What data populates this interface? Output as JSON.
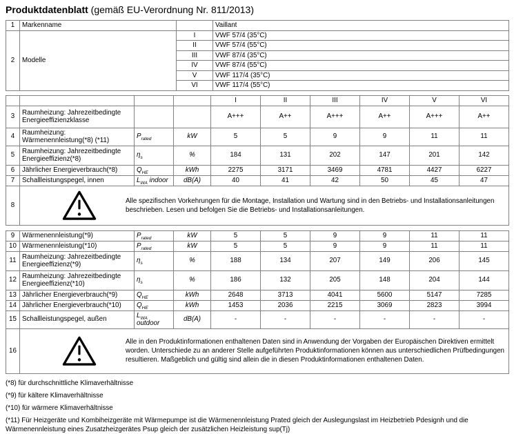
{
  "title": {
    "main": "Produktdatenblatt",
    "sub": " (gemäß EU-Verordnung Nr. 811/2013)"
  },
  "info_table": {
    "brand": {
      "num": "1",
      "label": "Markenname",
      "roman": "",
      "value": "Vaillant"
    },
    "models": {
      "num": "2",
      "label": "Modelle",
      "items": [
        {
          "roman": "I",
          "value": "VWF 57/4 (35°C)"
        },
        {
          "roman": "II",
          "value": "VWF 57/4 (55°C)"
        },
        {
          "roman": "III",
          "value": "VWF 87/4 (35°C)"
        },
        {
          "roman": "IV",
          "value": "VWF 87/4 (55°C)"
        },
        {
          "roman": "V",
          "value": "VWF 117/4 (35°C)"
        },
        {
          "roman": "VI",
          "value": "VWF 117/4 (55°C)"
        }
      ]
    }
  },
  "column_headers": [
    "I",
    "II",
    "III",
    "IV",
    "V",
    "VI"
  ],
  "upper_rows": [
    {
      "num": "3",
      "label": "Raumheizung: Jahrezeitbedingte Energieeffizienzklasse",
      "symbol": {
        "base": "",
        "sub": "",
        "suffix": ""
      },
      "unit": "",
      "values": [
        "A+++",
        "A++",
        "A+++",
        "A++",
        "A+++",
        "A++"
      ]
    },
    {
      "num": "4",
      "label": "Raumheizung: Wärmenennleistung(*8) (*11)",
      "symbol": {
        "base": "P",
        "sub": "rated",
        "suffix": ""
      },
      "unit": "kW",
      "values": [
        "5",
        "5",
        "9",
        "9",
        "11",
        "11"
      ]
    },
    {
      "num": "5",
      "label": "Raumheizung: Jahrezeitbedingte Energieeffizienz(*8)",
      "symbol": {
        "base": "η",
        "sub": "s",
        "suffix": ""
      },
      "unit": "%",
      "values": [
        "184",
        "131",
        "202",
        "147",
        "201",
        "142"
      ]
    },
    {
      "num": "6",
      "label": "Jährlicher Energieverbrauch(*8)",
      "symbol": {
        "base": "Q",
        "sub": "HE",
        "suffix": ""
      },
      "unit": "kWh",
      "values": [
        "2275",
        "3171",
        "3469",
        "4781",
        "4427",
        "6227"
      ]
    },
    {
      "num": "7",
      "label": "Schallleistungspegel, innen",
      "symbol": {
        "base": "L",
        "sub": "WA",
        "suffix": " indoor"
      },
      "unit": "dB(A)",
      "values": [
        "40",
        "41",
        "42",
        "50",
        "45",
        "47"
      ]
    }
  ],
  "warning_8": {
    "num": "8",
    "text": "Alle spezifischen Vorkehrungen für die Montage, Installation und Wartung sind in den Betriebs- und Installationsanleitungen beschrieben. Lesen und befolgen Sie die Betriebs- und Installationsanleitungen."
  },
  "lower_rows": [
    {
      "num": "9",
      "label": "Wärmenennleistung(*9)",
      "symbol": {
        "base": "P",
        "sub": "rated",
        "suffix": ""
      },
      "unit": "kW",
      "values": [
        "5",
        "5",
        "9",
        "9",
        "11",
        "11"
      ]
    },
    {
      "num": "10",
      "label": "Wärmenennleistung(*10)",
      "symbol": {
        "base": "P",
        "sub": "rated",
        "suffix": ""
      },
      "unit": "kW",
      "values": [
        "5",
        "5",
        "9",
        "9",
        "11",
        "11"
      ]
    },
    {
      "num": "11",
      "label": "Raumheizung: Jahrezeitbedingte Energieeffizienz(*9)",
      "symbol": {
        "base": "η",
        "sub": "s",
        "suffix": ""
      },
      "unit": "%",
      "values": [
        "188",
        "134",
        "207",
        "149",
        "206",
        "145"
      ]
    },
    {
      "num": "12",
      "label": "Raumheizung: Jahrezeitbedingte Energieeffizienz(*10)",
      "symbol": {
        "base": "η",
        "sub": "s",
        "suffix": ""
      },
      "unit": "%",
      "values": [
        "186",
        "132",
        "205",
        "148",
        "204",
        "144"
      ]
    },
    {
      "num": "13",
      "label": "Jährlicher Energieverbrauch(*9)",
      "symbol": {
        "base": "Q",
        "sub": "HE",
        "suffix": ""
      },
      "unit": "kWh",
      "values": [
        "2648",
        "3713",
        "4041",
        "5600",
        "5147",
        "7285"
      ]
    },
    {
      "num": "14",
      "label": "Jährlicher Energieverbrauch(*10)",
      "symbol": {
        "base": "Q",
        "sub": "HE",
        "suffix": ""
      },
      "unit": "kWh",
      "values": [
        "1453",
        "2036",
        "2215",
        "3069",
        "2823",
        "3994"
      ]
    },
    {
      "num": "15",
      "label": "Schallleistungspegel, außen",
      "symbol": {
        "base": "L",
        "sub": "WA",
        "suffix": " outdoor"
      },
      "unit": "dB(A)",
      "values": [
        "-",
        "-",
        "-",
        "-",
        "-",
        "-"
      ]
    }
  ],
  "warning_16": {
    "num": "16",
    "text": "Alle in den Produktinformationen enthaltenen Daten sind in Anwendung der Vorgaben der Europäischen Direktiven ermittelt worden. Unterschiede zu an anderer Stelle aufgeführten Produktinformationen können aus unterschiedlichen Prüfbedingungen resultieren. Maßgeblich und gültig sind allein die in diesen Produktinformationen enthaltenen Daten."
  },
  "footnotes": [
    "(*8) für durchschnittliche Klimaverhältnisse",
    "(*9) für kältere Klimaverhältnisse",
    "(*10) für wärmere Klimaverhältnisse",
    "(*11) Für Heizgeräte und Kombiheizgeräte mit Wärmepumpe ist die Wärmenennleistung Prated gleich der Auslegungslast im Heizbetrieb Pdesignh und die Wärmenennleistung eines Zusatzheizgerätes Psup gleich der zusätzlichen Heizleistung sup(Tj)"
  ],
  "icons": {
    "warning": "warning-triangle-icon"
  },
  "colors": {
    "border": "#808080",
    "text": "#000000",
    "background": "#ffffff"
  }
}
